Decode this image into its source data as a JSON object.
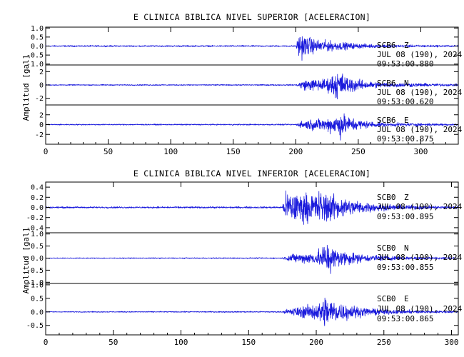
{
  "chart_data": [
    {
      "type": "line",
      "title": "E CLINICA BIBLICA NIVEL SUPERIOR [ACELERACION]",
      "ylabel": "Amplitud [gal]",
      "xlim": [
        0,
        330
      ],
      "x_ticks": [
        "0",
        "50",
        "100",
        "150",
        "200",
        "250",
        "300"
      ],
      "x_tick_values": [
        0,
        50,
        100,
        150,
        200,
        250,
        300
      ],
      "series": [
        {
          "name": "Z",
          "station": "SCB6",
          "component": "Z",
          "date": "JUL 08 (190), 2024",
          "time": "09:53:00.880",
          "ylim": [
            -1.05,
            1.05
          ],
          "y_ticks": [
            "1.0",
            "0.5",
            "0.0",
            "-0.5",
            "-1.0"
          ],
          "y_tick_values": [
            1.0,
            0.5,
            0.0,
            -0.5,
            -1.0
          ],
          "envelope": [
            [
              0,
              0.05
            ],
            [
              200,
              0.05
            ],
            [
              203,
              1.0
            ],
            [
              207,
              0.8
            ],
            [
              215,
              0.5
            ],
            [
              230,
              0.35
            ],
            [
              250,
              0.18
            ],
            [
              270,
              0.1
            ],
            [
              330,
              0.06
            ]
          ]
        },
        {
          "name": "N",
          "station": "SCB6",
          "component": "N",
          "date": "JUL 08 (190), 2024",
          "time": "09:53:00.620",
          "ylim": [
            -3,
            3
          ],
          "y_ticks": [
            "2",
            "0",
            "-2"
          ],
          "y_tick_values": [
            2,
            0,
            -2
          ],
          "envelope": [
            [
              0,
              0.1
            ],
            [
              200,
              0.12
            ],
            [
              206,
              1.0
            ],
            [
              225,
              1.3
            ],
            [
              234,
              3.0
            ],
            [
              240,
              1.8
            ],
            [
              255,
              0.8
            ],
            [
              270,
              0.5
            ],
            [
              330,
              0.2
            ]
          ]
        },
        {
          "name": "E",
          "station": "SCB6",
          "component": "E",
          "date": "JUL 08 (190), 2024",
          "time": "09:53:00.875",
          "ylim": [
            -4,
            4
          ],
          "y_ticks": [
            "2",
            "0",
            "-2"
          ],
          "y_tick_values": [
            2,
            0,
            -2
          ],
          "envelope": [
            [
              0,
              0.15
            ],
            [
              200,
              0.18
            ],
            [
              206,
              1.2
            ],
            [
              225,
              1.8
            ],
            [
              236,
              3.6
            ],
            [
              243,
              2.0
            ],
            [
              258,
              0.9
            ],
            [
              275,
              0.5
            ],
            [
              330,
              0.25
            ]
          ]
        }
      ]
    },
    {
      "type": "line",
      "title": "E CLINICA BIBLICA NIVEL INFERIOR [ACELERACION]",
      "ylabel": "Amplitud [gal]",
      "xlim": [
        0,
        305
      ],
      "x_ticks": [
        "0",
        "50",
        "100",
        "150",
        "200",
        "250",
        "300"
      ],
      "x_tick_values": [
        0,
        50,
        100,
        150,
        200,
        250,
        300
      ],
      "series": [
        {
          "name": "Z",
          "station": "SCB0",
          "component": "Z",
          "date": "JUL 08 (190), 2024",
          "time": "09:53:00.895",
          "ylim": [
            -0.5,
            0.5
          ],
          "y_ticks": [
            "0.4",
            "0.2",
            "0.0",
            "-0.2",
            "-0.4"
          ],
          "y_tick_values": [
            0.4,
            0.2,
            0.0,
            -0.2,
            -0.4
          ],
          "envelope": [
            [
              0,
              0.02
            ],
            [
              175,
              0.025
            ],
            [
              178,
              0.45
            ],
            [
              195,
              0.35
            ],
            [
              205,
              0.45
            ],
            [
              215,
              0.3
            ],
            [
              235,
              0.14
            ],
            [
              255,
              0.07
            ],
            [
              305,
              0.03
            ]
          ]
        },
        {
          "name": "N",
          "station": "SCB0",
          "component": "N",
          "date": "JUL 08 (190), 2024",
          "time": "09:53:00.855",
          "ylim": [
            -1.05,
            1.05
          ],
          "y_ticks": [
            "1.0",
            "0.5",
            "0.0",
            "-0.5",
            "-1.0"
          ],
          "y_tick_values": [
            1.0,
            0.5,
            0.0,
            -0.5,
            -1.0
          ],
          "envelope": [
            [
              0,
              0.02
            ],
            [
              175,
              0.03
            ],
            [
              180,
              0.2
            ],
            [
              200,
              0.35
            ],
            [
              208,
              0.95
            ],
            [
              215,
              0.5
            ],
            [
              235,
              0.2
            ],
            [
              260,
              0.1
            ],
            [
              305,
              0.04
            ]
          ]
        },
        {
          "name": "E",
          "station": "SCB0",
          "component": "E",
          "date": "JUL 08 (190), 2024",
          "time": "09:53:00.865",
          "ylim": [
            -0.85,
            1.05
          ],
          "y_ticks": [
            "1.0",
            "0.5",
            "0.0",
            "-0.5"
          ],
          "y_tick_values": [
            1.0,
            0.5,
            0.0,
            -0.5
          ],
          "envelope": [
            [
              0,
              0.02
            ],
            [
              175,
              0.03
            ],
            [
              180,
              0.18
            ],
            [
              200,
              0.4
            ],
            [
              208,
              0.85
            ],
            [
              215,
              0.5
            ],
            [
              235,
              0.2
            ],
            [
              260,
              0.1
            ],
            [
              305,
              0.04
            ]
          ]
        }
      ]
    }
  ]
}
